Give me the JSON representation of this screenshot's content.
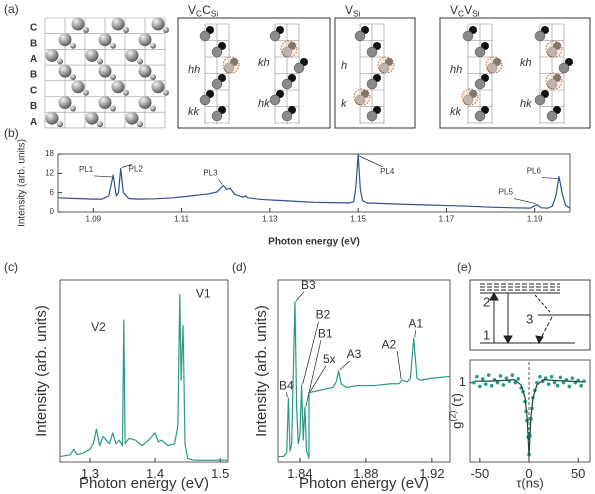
{
  "panel_labels": [
    "(a)",
    "(b)",
    "(c)",
    "(d)",
    "(e)"
  ],
  "lattice": {
    "layers": [
      "C",
      "B",
      "A",
      "B",
      "C",
      "B",
      "A"
    ]
  },
  "defect_boxes": [
    {
      "title": [
        {
          "text": "V"
        },
        {
          "text": "C",
          "sub": true
        },
        {
          "text": "C"
        },
        {
          "text": "Si",
          "sub": true
        }
      ],
      "sites": [
        "hh",
        "kh",
        "kk",
        "hk"
      ]
    },
    {
      "title": [
        {
          "text": "V"
        },
        {
          "text": "Si",
          "sub": true
        }
      ],
      "sites": [
        "h",
        "k"
      ]
    },
    {
      "title": [
        {
          "text": "V"
        },
        {
          "text": "C",
          "sub": true
        },
        {
          "text": "V"
        },
        {
          "text": "Si",
          "sub": true
        }
      ],
      "sites": [
        "hh",
        "kh",
        "kk",
        "hk"
      ]
    }
  ],
  "level_diagram": {
    "levels": [
      "2",
      "3",
      "1"
    ]
  },
  "chart_data": [
    {
      "type": "line",
      "xlabel": "Photon energy (eV)",
      "ylabel": "Intensity (arb. units)",
      "xlim": [
        1.082,
        1.198
      ],
      "ylim": [
        0,
        18
      ],
      "xticks": [
        1.09,
        1.11,
        1.13,
        1.15,
        1.17,
        1.19
      ],
      "yticks": [
        0,
        6,
        12,
        18
      ],
      "x": [
        1.082,
        1.086,
        1.09,
        1.092,
        1.0935,
        1.0945,
        1.0952,
        1.0957,
        1.0962,
        1.0968,
        1.098,
        1.1,
        1.104,
        1.108,
        1.111,
        1.114,
        1.116,
        1.118,
        1.119,
        1.1195,
        1.1202,
        1.121,
        1.122,
        1.124,
        1.1245,
        1.125,
        1.128,
        1.132,
        1.136,
        1.14,
        1.144,
        1.148,
        1.149,
        1.1495,
        1.15,
        1.1505,
        1.151,
        1.152,
        1.156,
        1.16,
        1.165,
        1.17,
        1.175,
        1.18,
        1.185,
        1.189,
        1.1905,
        1.1915,
        1.193,
        1.194,
        1.1948,
        1.1955,
        1.1962,
        1.197,
        1.198
      ],
      "series": [
        {
          "color": "#2f4f8f",
          "values": [
            4.4,
            4.2,
            4.0,
            4.0,
            5,
            11.5,
            5,
            6,
            13.5,
            6,
            4.2,
            4.0,
            4.1,
            4.4,
            4.8,
            5.3,
            5.6,
            6.2,
            7.6,
            8.2,
            7.0,
            7.4,
            5.5,
            4.6,
            5.0,
            4.4,
            3.9,
            3.6,
            3.3,
            3.0,
            2.9,
            2.8,
            3.2,
            8,
            18,
            7,
            3.5,
            2.8,
            2.6,
            2.4,
            2.2,
            2.0,
            1.8,
            1.5,
            1.3,
            1.2,
            2.3,
            1.3,
            1.2,
            1.8,
            5,
            11,
            6,
            2,
            1.2
          ]
        }
      ],
      "annotations": [
        {
          "text": "PL1",
          "x": 1.0945,
          "y": 11.5
        },
        {
          "text": "PL2",
          "x": 1.0962,
          "y": 13.5
        },
        {
          "text": "PL3",
          "x": 1.1195,
          "y": 8.2
        },
        {
          "text": "PL4",
          "x": 1.15,
          "y": 18
        },
        {
          "text": "PL5",
          "x": 1.1905,
          "y": 2.3
        },
        {
          "text": "PL6",
          "x": 1.1955,
          "y": 11
        }
      ]
    },
    {
      "type": "line",
      "xlabel": "Photon energy (eV)",
      "ylabel": "Intensity (arb. units)",
      "xlim": [
        1.254,
        1.512
      ],
      "ylim": [
        0,
        1
      ],
      "xticks": [
        1.3,
        1.4,
        1.5
      ],
      "x": [
        1.254,
        1.27,
        1.275,
        1.28,
        1.29,
        1.3,
        1.305,
        1.31,
        1.315,
        1.32,
        1.33,
        1.335,
        1.34,
        1.345,
        1.35,
        1.352,
        1.354,
        1.36,
        1.37,
        1.38,
        1.39,
        1.4,
        1.405,
        1.41,
        1.42,
        1.43,
        1.435,
        1.438,
        1.44,
        1.443,
        1.446,
        1.45,
        1.46,
        1.48,
        1.512
      ],
      "series": [
        {
          "color": "#2a9a84",
          "values": [
            0.03,
            0.04,
            0.07,
            0.04,
            0.05,
            0.07,
            0.1,
            0.18,
            0.09,
            0.14,
            0.1,
            0.16,
            0.1,
            0.12,
            0.09,
            0.78,
            0.1,
            0.13,
            0.12,
            0.09,
            0.12,
            0.16,
            0.11,
            0.12,
            0.09,
            0.1,
            0.2,
            0.92,
            0.45,
            0.75,
            0.1,
            0.02,
            0.01,
            0.01,
            0.01
          ]
        }
      ],
      "annotations": [
        {
          "text": "V2",
          "x": 1.352,
          "y": 0.78
        },
        {
          "text": "V1",
          "x": 1.438,
          "y": 0.92
        }
      ]
    },
    {
      "type": "line",
      "xlabel": "Photon energy (eV)",
      "ylabel": "Intensity (arb. units)",
      "xlim": [
        1.8267,
        1.931
      ],
      "ylim": [
        0,
        1
      ],
      "xticks": [
        1.84,
        1.88,
        1.92
      ],
      "x": [
        1.8267,
        1.83,
        1.832,
        1.833,
        1.834,
        1.835,
        1.836,
        1.837,
        1.838,
        1.839,
        1.84,
        1.841,
        1.842,
        1.843,
        1.844,
        1.8452,
        1.8455,
        1.8455,
        1.85,
        1.855,
        1.86,
        1.862,
        1.8635,
        1.865,
        1.868,
        1.875,
        1.885,
        1.895,
        1.9,
        1.902,
        1.905,
        1.907,
        1.909,
        1.911,
        1.913,
        1.92,
        1.931
      ],
      "series": [
        {
          "color": "#2a9a84",
          "values": [
            0.03,
            0.03,
            0.05,
            0.35,
            0.06,
            0.1,
            0.5,
            0.88,
            0.3,
            0.1,
            0.15,
            0.42,
            0.12,
            0.3,
            0.06,
            0.03,
            0.02,
            0.38,
            0.39,
            0.4,
            0.41,
            0.44,
            0.5,
            0.43,
            0.41,
            0.42,
            0.42,
            0.43,
            0.43,
            0.45,
            0.44,
            0.46,
            0.68,
            0.46,
            0.45,
            0.46,
            0.47
          ]
        }
      ],
      "annotations": [
        {
          "text": "B4",
          "x": 1.833,
          "y": 0.35
        },
        {
          "text": "B3",
          "x": 1.837,
          "y": 0.88
        },
        {
          "text": "B2",
          "x": 1.841,
          "y": 0.42
        },
        {
          "text": "B1",
          "x": 1.843,
          "y": 0.3
        },
        {
          "text": "5x",
          "x": 1.8455,
          "y": 0.38
        },
        {
          "text": "A3",
          "x": 1.8635,
          "y": 0.5
        },
        {
          "text": "A2",
          "x": 1.902,
          "y": 0.45
        },
        {
          "text": "A1",
          "x": 1.909,
          "y": 0.68
        }
      ]
    },
    {
      "type": "scatter",
      "xlabel": "τ(ns)",
      "ylabel": [
        {
          "text": "g"
        },
        {
          "text": "(2)",
          "sup": true
        },
        {
          "text": " (τ)"
        }
      ],
      "xlim": [
        -60,
        62
      ],
      "ylim": [
        -0.05,
        1.3
      ],
      "xticks": [
        -50,
        0,
        50
      ],
      "yticks": [
        1
      ],
      "x": [
        -56,
        -53,
        -50,
        -47,
        -44,
        -41,
        -38,
        -35,
        -32,
        -29,
        -26,
        -23,
        -20,
        -17,
        -14,
        -11,
        -8,
        -6,
        -4,
        -3,
        -2,
        -1,
        0,
        1,
        2,
        3,
        4,
        6,
        8,
        11,
        14,
        17,
        20,
        23,
        26,
        29,
        32,
        35,
        38,
        41,
        44,
        47,
        50,
        53,
        56
      ],
      "series": [
        {
          "type": "scatter",
          "color": "#2a9a84",
          "values": [
            1.0,
            1.08,
            0.95,
            1.05,
            0.98,
            1.1,
            0.96,
            1.04,
            1.0,
            1.09,
            0.97,
            1.06,
            1.02,
            1.1,
            1.0,
            1.05,
            0.93,
            0.88,
            0.75,
            0.62,
            0.5,
            0.28,
            0.05,
            0.3,
            0.52,
            0.66,
            0.8,
            0.9,
            1.0,
            1.08,
            1.02,
            1.06,
            0.98,
            1.08,
            1.0,
            0.96,
            1.07,
            1.0,
            1.04,
            0.95,
            1.06,
            1.0,
            1.03,
            0.96,
            1.02
          ]
        },
        {
          "type": "line",
          "color": "#1d4a42",
          "x": [
            -55,
            -40,
            -25,
            -15,
            -8,
            -4,
            -2,
            -1,
            0,
            1,
            2,
            4,
            8,
            15,
            25,
            40,
            55
          ],
          "values": [
            1.02,
            1.02,
            1.03,
            1.04,
            0.97,
            0.8,
            0.55,
            0.3,
            0.02,
            0.3,
            0.55,
            0.8,
            0.97,
            1.04,
            1.03,
            1.02,
            1.01
          ]
        }
      ]
    }
  ]
}
